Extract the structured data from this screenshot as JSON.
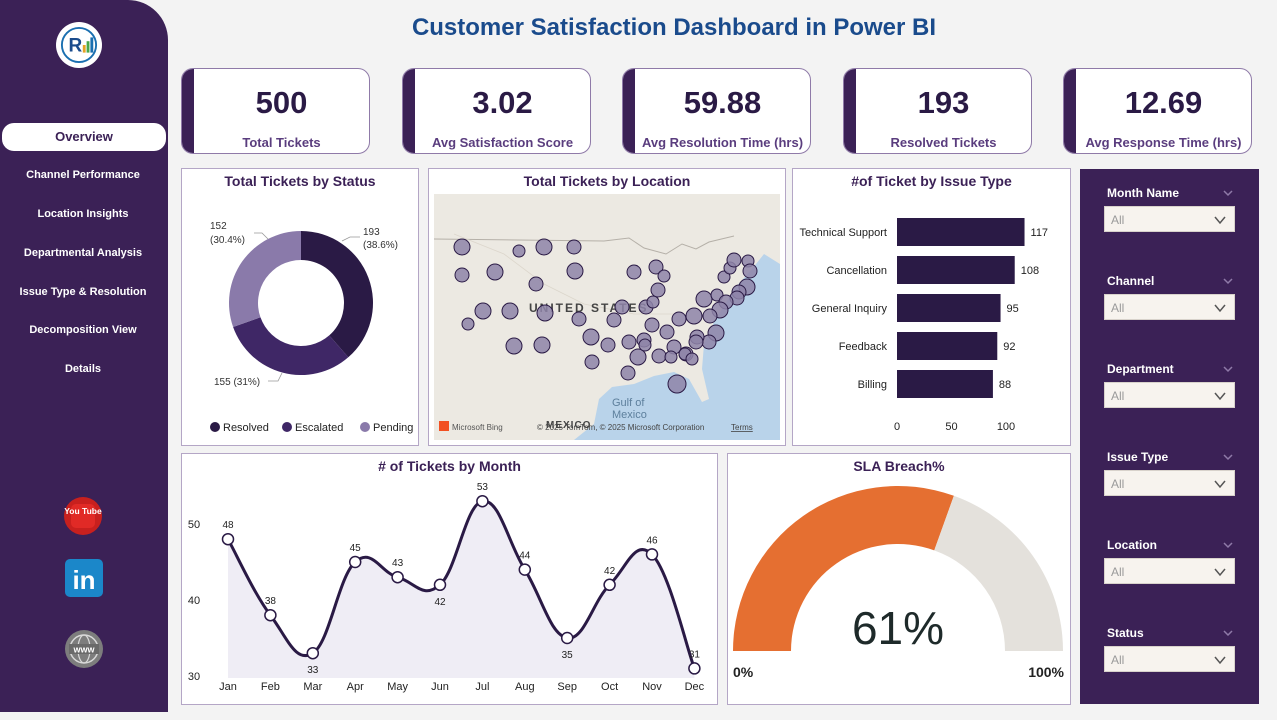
{
  "dashboard": {
    "title": "Customer Satisfaction Dashboard in Power BI"
  },
  "sidebar": {
    "logo_icon": "company-logo",
    "nav": [
      {
        "label": "Overview",
        "active": true
      },
      {
        "label": "Channel Performance"
      },
      {
        "label": "Location Insights"
      },
      {
        "label": "Departmental Analysis"
      },
      {
        "label": "Issue Type & Resolution"
      },
      {
        "label": "Decomposition View"
      },
      {
        "label": "Details"
      }
    ],
    "social": [
      {
        "name": "youtube-icon",
        "text": "You Tube"
      },
      {
        "name": "linkedin-icon",
        "text": "in"
      },
      {
        "name": "website-icon",
        "text": "www"
      }
    ]
  },
  "kpis": [
    {
      "value": "500",
      "label": "Total Tickets"
    },
    {
      "value": "3.02",
      "label": "Avg Satisfaction Score"
    },
    {
      "value": "59.88",
      "label": "Avg Resolution Time (hrs)"
    },
    {
      "value": "193",
      "label": "Resolved Tickets"
    },
    {
      "value": "12.69",
      "label": "Avg Response Time (hrs)"
    }
  ],
  "colors": {
    "primary": "#3b2156",
    "resolved": "#2a1a45",
    "escalated": "#3f2766",
    "pending": "#8a7aaa",
    "sla_fill": "#e56f31",
    "sla_rest": "#e4e1dc",
    "title": "#1a4b8c"
  },
  "chart_data": [
    {
      "type": "pie",
      "title": "Total Tickets by Status",
      "categories": [
        "Resolved",
        "Escalated",
        "Pending"
      ],
      "values": [
        193,
        155,
        152
      ],
      "data_labels": [
        "193 (38.6%)",
        "155 (31%)",
        "152 (30.4%)"
      ],
      "legend": "bottom"
    },
    {
      "type": "bar",
      "orientation": "horizontal",
      "title": "#of Ticket by Issue Type",
      "categories": [
        "Technical Support",
        "Cancellation",
        "General Inquiry",
        "Feedback",
        "Billing"
      ],
      "values": [
        117,
        108,
        95,
        92,
        88
      ],
      "xticks": [
        "0",
        "50",
        "100"
      ],
      "xlim": [
        0,
        130
      ]
    },
    {
      "type": "area",
      "title": "# of Tickets by Month",
      "categories": [
        "Jan",
        "Feb",
        "Mar",
        "Apr",
        "May",
        "Jun",
        "Jul",
        "Aug",
        "Sep",
        "Oct",
        "Nov",
        "Dec"
      ],
      "values": [
        48,
        38,
        33,
        45,
        43,
        42,
        53,
        44,
        35,
        42,
        46,
        31
      ],
      "yticks": [
        "50",
        "40",
        "30"
      ],
      "ylim": [
        30,
        55
      ]
    },
    {
      "type": "gauge",
      "title": "SLA Breach%",
      "value": 61,
      "value_label": "61%",
      "min_label": "0%",
      "max_label": "100%"
    }
  ],
  "map": {
    "title": "Total Tickets by Location",
    "country_label": "UNITED STATES",
    "gulf_label_1": "Gulf of",
    "gulf_label_2": "Mexico",
    "mexico_label": "MEXICO",
    "brand": "Microsoft Bing",
    "copyright": "© 2025 TomTom, © 2025 Microsoft Corporation",
    "terms": "Terms"
  },
  "slicers": [
    {
      "label": "Month Name",
      "value": "All"
    },
    {
      "label": "Channel",
      "value": "All"
    },
    {
      "label": "Department",
      "value": "All"
    },
    {
      "label": "Issue Type",
      "value": "All"
    },
    {
      "label": "Location",
      "value": "All"
    },
    {
      "label": "Status",
      "value": "All"
    }
  ]
}
